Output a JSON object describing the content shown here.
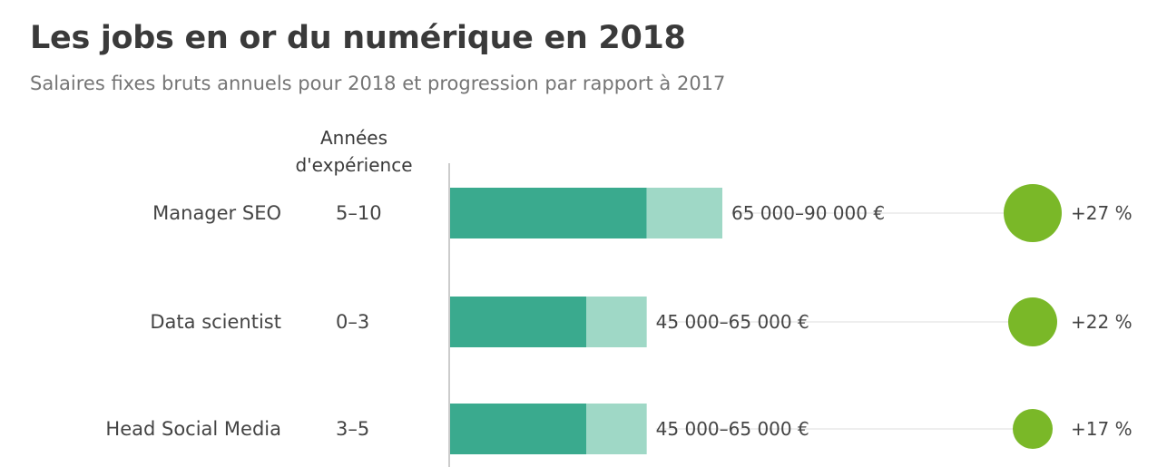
{
  "chart_data": {
    "type": "bar",
    "title": "Les jobs en or du numérique en 2018",
    "subtitle": "Salaires fixes bruts annuels pour 2018 et progression par rapport à 2017",
    "experience_header": [
      "Années",
      "d'expérience"
    ],
    "xlim": [
      0,
      90000
    ],
    "rows": [
      {
        "job": "Manager SEO",
        "experience": "5–10",
        "min": 65000,
        "max": 90000,
        "range_label": "65 000–90 000 €",
        "growth": 27,
        "growth_label": "+27 %"
      },
      {
        "job": "Data scientist",
        "experience": "0–3",
        "min": 45000,
        "max": 65000,
        "range_label": "45 000–65 000 €",
        "growth": 22,
        "growth_label": "+22 %"
      },
      {
        "job": "Head Social Media",
        "experience": "3–5",
        "min": 45000,
        "max": 65000,
        "range_label": "45 000–65 000 €",
        "growth": 17,
        "growth_label": "+17 %"
      }
    ],
    "colors": {
      "min_bar": "#3aaa8e",
      "max_bar": "#9fd8c6",
      "growth_circle": "#7ab828",
      "axis": "#cccccc",
      "leader": "#eeeeee"
    }
  }
}
